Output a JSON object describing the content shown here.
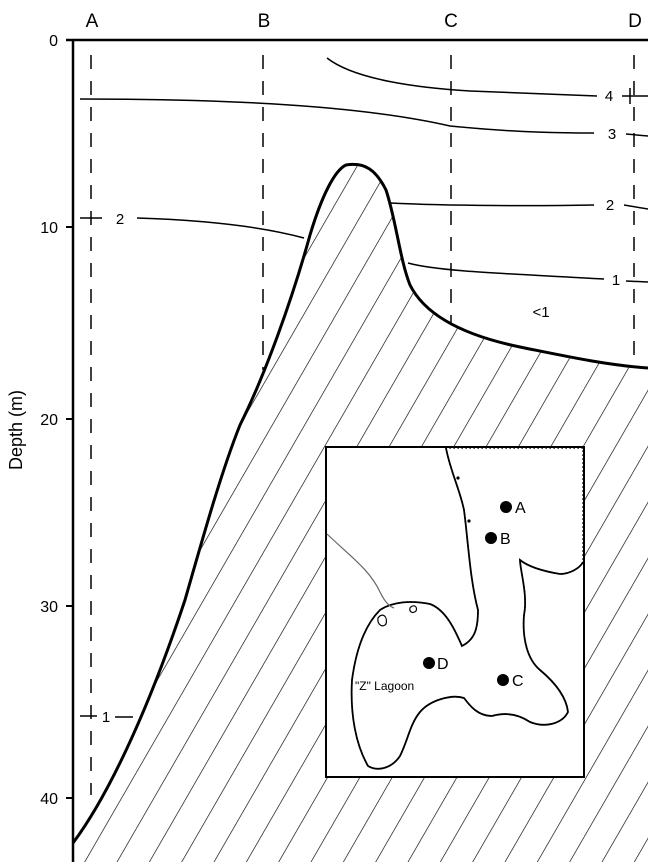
{
  "figure": {
    "y_axis": {
      "label": "Depth (m)",
      "ticks": [
        "0",
        "10",
        "20",
        "30",
        "40"
      ]
    },
    "stations": [
      "A",
      "B",
      "C",
      "D"
    ],
    "contour_labels": {
      "c4": "4",
      "c3": "3",
      "c2_right": "2",
      "c2_left": "2",
      "c1_right": "1",
      "c1_left": "1",
      "lt1": "<1"
    },
    "inset_map": {
      "station_labels": [
        "A",
        "B",
        "C",
        "D"
      ],
      "lagoon_label": "\"Z\" Lagoon"
    }
  }
}
